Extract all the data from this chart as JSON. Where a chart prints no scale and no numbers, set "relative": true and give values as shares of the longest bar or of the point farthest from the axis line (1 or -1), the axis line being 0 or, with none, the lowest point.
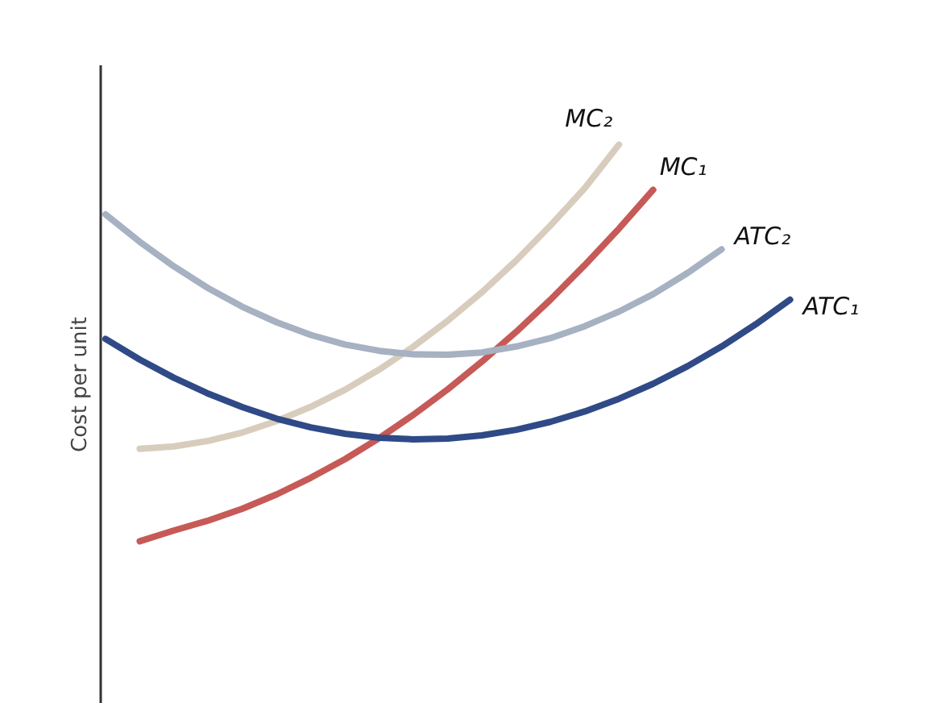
{
  "chart_data": {
    "type": "line",
    "relative": true,
    "ylabel": "Cost per unit",
    "grid": false,
    "legend": false,
    "marker": "none",
    "line_style": "solid",
    "categories": [
      null,
      null,
      null,
      null,
      null,
      null,
      null,
      null,
      null,
      null,
      null,
      null,
      null,
      null,
      null,
      null,
      null,
      null,
      null,
      null,
      null
    ],
    "series": [
      {
        "name": "MC₂",
        "color": "#d8cdbd",
        "values": [
          null,
          0.233,
          0.239,
          0.253,
          0.274,
          0.303,
          0.339,
          0.382,
          0.433,
          0.491,
          0.556,
          0.628,
          0.708,
          0.796,
          0.89,
          1.0,
          null,
          null,
          null,
          null,
          null
        ]
      },
      {
        "name": "MC₁",
        "color": "#c65a57",
        "values": [
          null,
          0.0,
          0.027,
          0.052,
          0.082,
          0.118,
          0.16,
          0.207,
          0.26,
          0.319,
          0.383,
          0.453,
          0.528,
          0.609,
          0.696,
          0.788,
          0.886,
          null,
          null,
          null,
          null
        ]
      },
      {
        "name": "ATC₂",
        "color": "#a6b1c2",
        "values": [
          0.824,
          0.755,
          0.693,
          0.638,
          0.591,
          0.552,
          0.52,
          0.496,
          0.48,
          0.471,
          0.47,
          0.476,
          0.491,
          0.512,
          0.542,
          0.579,
          0.623,
          0.676,
          0.736,
          null,
          null
        ]
      },
      {
        "name": "ATC₁",
        "color": "#2f4a86",
        "values": [
          0.51,
          0.458,
          0.412,
          0.372,
          0.338,
          0.309,
          0.287,
          0.271,
          0.261,
          0.257,
          0.259,
          0.267,
          0.281,
          0.301,
          0.327,
          0.359,
          0.397,
          0.441,
          0.491,
          0.547,
          0.609
        ]
      }
    ]
  }
}
